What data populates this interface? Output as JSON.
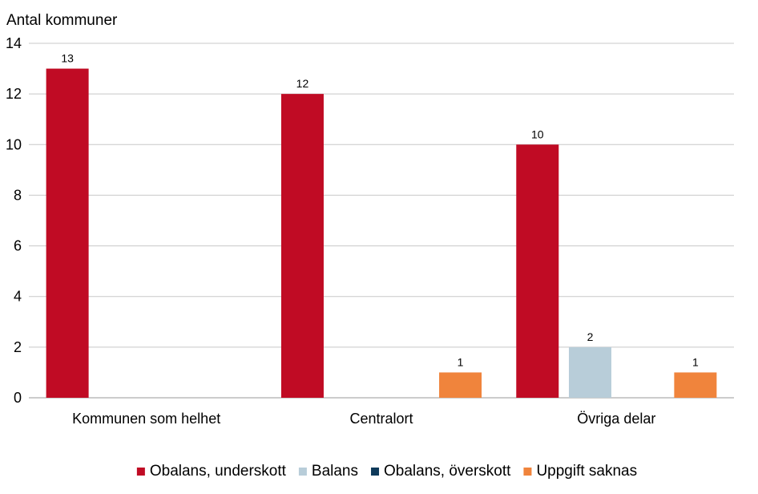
{
  "chart_data": {
    "type": "bar",
    "ylabel": "Antal kommuner",
    "ylim": [
      0,
      14
    ],
    "yticks": [
      0,
      2,
      4,
      6,
      8,
      10,
      12,
      14
    ],
    "grid": true,
    "legend_position": "bottom",
    "categories": [
      "Kommunen som helhet",
      "Centralort",
      "Övriga delar"
    ],
    "series": [
      {
        "name": "Obalans, underskott",
        "color": "#c00b24",
        "values": [
          13,
          12,
          10
        ]
      },
      {
        "name": "Balans",
        "color": "#b8cdd9",
        "values": [
          0,
          0,
          2
        ]
      },
      {
        "name": "Obalans, överskott",
        "color": "#0e3a5a",
        "values": [
          0,
          0,
          0
        ]
      },
      {
        "name": "Uppgift saknas",
        "color": "#f0843c",
        "values": [
          0,
          1,
          1
        ]
      }
    ]
  }
}
